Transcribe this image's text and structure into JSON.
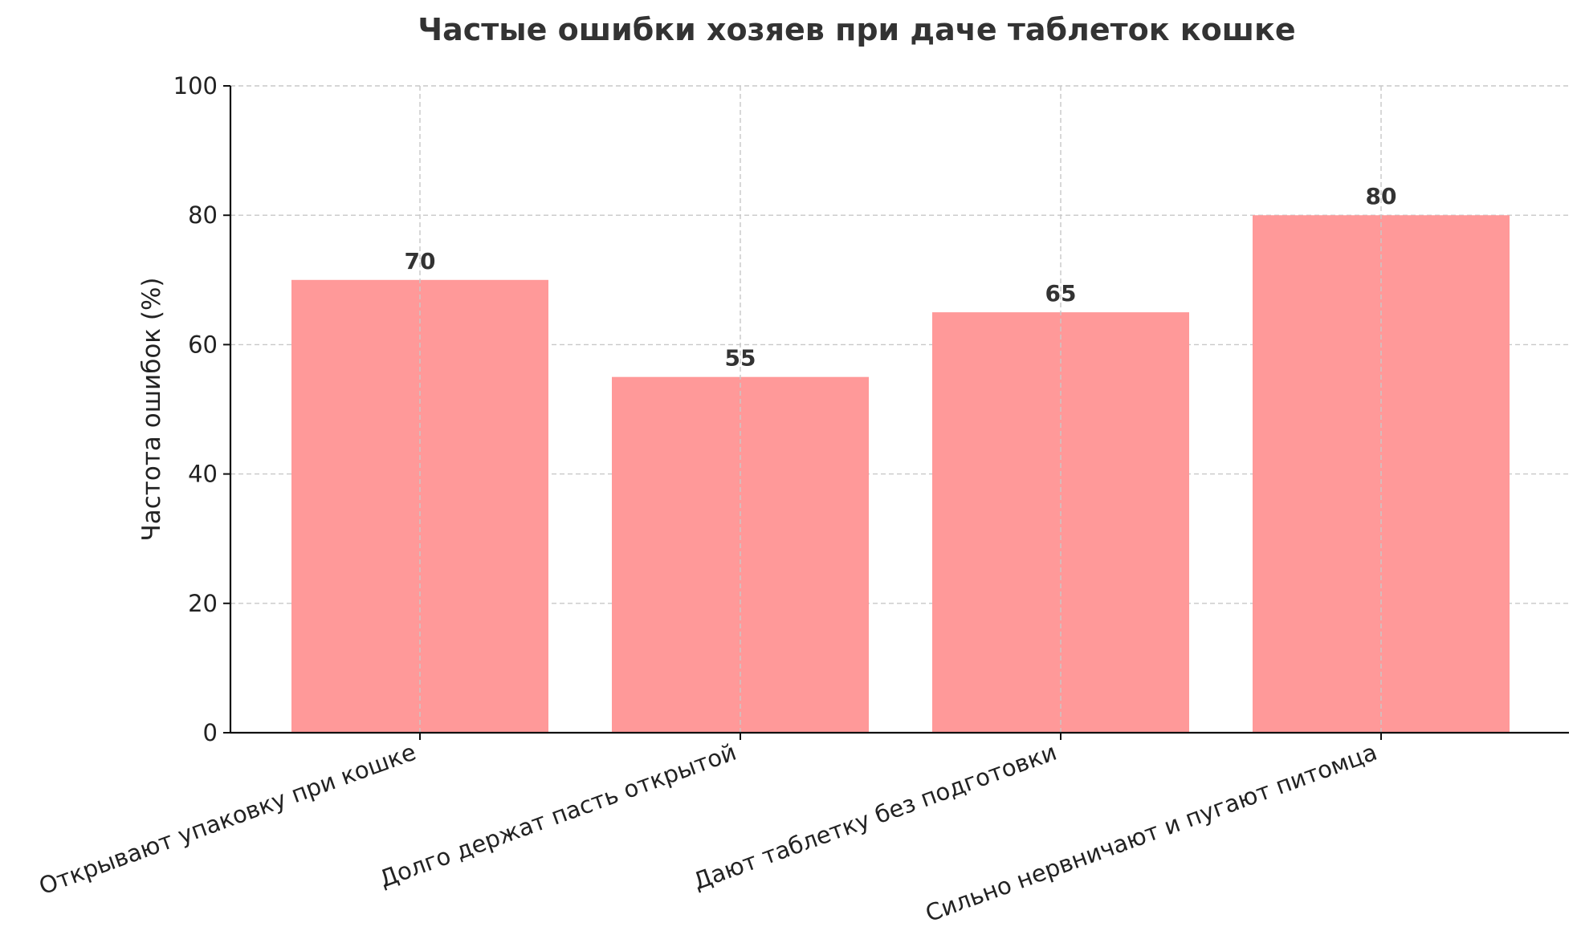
{
  "chart_data": {
    "type": "bar",
    "title": "Частые ошибки хозяев при даче таблеток кошке",
    "xlabel": "",
    "ylabel": "Частота ошибок (%)",
    "categories": [
      "Открывают упаковку при кошке",
      "Долго держат пасть открытой",
      "Дают таблетку без подготовки",
      "Сильно нервничают и пугают питомца"
    ],
    "values": [
      70,
      55,
      65,
      80
    ],
    "ylim": [
      0,
      100
    ],
    "yticks": [
      "0",
      "20",
      "40",
      "60",
      "80",
      "100"
    ],
    "grid": true,
    "bar_color": "#ff9999",
    "data_labels": true
  }
}
